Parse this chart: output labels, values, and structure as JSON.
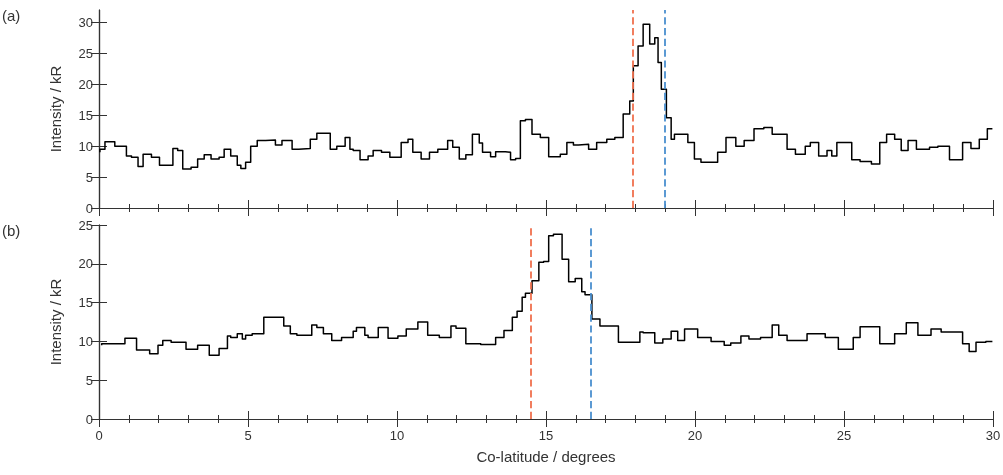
{
  "chart_data": [
    {
      "type": "step",
      "annotations": [
        "(a)"
      ],
      "ylabel": "Intensity / kR",
      "xlim": [
        0,
        30
      ],
      "xticks": [
        0,
        5,
        10,
        15,
        20,
        25,
        30
      ],
      "ylim": [
        0,
        32
      ],
      "yticks": [
        0,
        5,
        10,
        15,
        20,
        25,
        30
      ],
      "tick_labels": "y",
      "grid": false,
      "series": [
        {
          "color": "#000000",
          "x": [
            0.03,
            0.2,
            0.53,
            0.92,
            1.09,
            1.31,
            1.48,
            1.76,
            2.03,
            2.26,
            2.48,
            2.64,
            2.81,
            3.09,
            3.31,
            3.53,
            3.76,
            4.03,
            4.2,
            4.42,
            4.64,
            4.76,
            4.92,
            5.09,
            5.31,
            5.59,
            5.92,
            6.14,
            6.48,
            6.7,
            7.09,
            7.31,
            7.53,
            7.76,
            7.98,
            8.26,
            8.42,
            8.53,
            8.76,
            9.03,
            9.2,
            9.48,
            9.76,
            9.92,
            10.14,
            10.37,
            10.53,
            10.81,
            11.09,
            11.37,
            11.7,
            11.87,
            12.09,
            12.31,
            12.53,
            12.76,
            12.87,
            13.14,
            13.31,
            13.64,
            13.81,
            13.98,
            14.14,
            14.31,
            14.53,
            14.81,
            15.09,
            15.48,
            15.7,
            15.92,
            16.09,
            16.43,
            16.7,
            17.04,
            17.31,
            17.59,
            17.81,
            17.93,
            18.09,
            18.26,
            18.37,
            18.48,
            18.65,
            18.76,
            18.87,
            19.04,
            19.2,
            19.31,
            19.54,
            19.76,
            19.98,
            20.2,
            20.54,
            20.76,
            21.04,
            21.37,
            21.65,
            21.98,
            22.31,
            22.59,
            23.09,
            23.37,
            23.7,
            23.87,
            24.15,
            24.43,
            24.59,
            24.76,
            24.98,
            25.26,
            25.54,
            25.92,
            26.2,
            26.43,
            26.7,
            26.92,
            27.15,
            27.43,
            27.87,
            28.15,
            28.54,
            28.98,
            29.26,
            29.54,
            29.81,
            29.98
          ],
          "values": [
            9,
            9.5,
            10.7,
            10,
            8.4,
            8.2,
            6.7,
            8.7,
            8.2,
            6.9,
            6.9,
            9.6,
            9.3,
            6.3,
            6.6,
            7.9,
            8.6,
            7.9,
            8.2,
            9.5,
            8.4,
            6.9,
            6.4,
            7.4,
            10,
            10.9,
            11,
            10.2,
            10.9,
            9.5,
            9.6,
            11.1,
            12.1,
            12.1,
            9.5,
            10,
            11.4,
            9.5,
            9.3,
            7.8,
            8.4,
            9.3,
            9,
            8.2,
            8.2,
            10.6,
            11.1,
            9,
            7.9,
            9,
            9.5,
            10.9,
            9.8,
            7.9,
            8.6,
            11.9,
            10.5,
            9,
            8.3,
            9.1,
            9,
            7.8,
            8,
            14.1,
            14.3,
            11.9,
            11.4,
            8.3,
            8.7,
            10.6,
            10.2,
            10.3,
            9.5,
            10.6,
            11.1,
            11.4,
            15.2,
            17.3,
            23,
            26.2,
            29.7,
            29.7,
            26.5,
            27.5,
            23.5,
            19.2,
            14.6,
            11.1,
            11.9,
            11.9,
            10.6,
            7.9,
            7.4,
            7.4,
            9,
            11.4,
            10,
            10.9,
            12.8,
            13,
            11.9,
            9.5,
            8.7,
            10,
            10.6,
            8.4,
            9.3,
            8.4,
            10.6,
            10.6,
            7.8,
            7.5,
            7.1,
            10.6,
            11.9,
            11.1,
            9.3,
            10.9,
            9.5,
            9.8,
            10,
            7.8,
            10.6,
            9.6,
            11.1,
            12.8
          ]
        }
      ],
      "ref_lines": [
        {
          "axis": "x",
          "value": 17.9,
          "color": "#f0704e",
          "line_style": "dashed"
        },
        {
          "axis": "x",
          "value": 19.0,
          "color": "#4a8fcf",
          "line_style": "dashed"
        }
      ]
    },
    {
      "type": "step",
      "annotations": [
        "(b)"
      ],
      "xlabel": "Co-latitude / degrees",
      "ylabel": "Intensity / kR",
      "xlim": [
        0,
        30
      ],
      "xticks": [
        0,
        5,
        10,
        15,
        20,
        25,
        30
      ],
      "ylim": [
        0,
        25
      ],
      "yticks": [
        0,
        5,
        10,
        15,
        20,
        25
      ],
      "grid": false,
      "series": [
        {
          "color": "#000000",
          "x": [
            0.09,
            0.53,
            0.87,
            1.26,
            1.7,
            1.98,
            2.14,
            2.42,
            2.92,
            3.31,
            3.7,
            4.03,
            4.31,
            4.42,
            4.64,
            4.81,
            4.92,
            5.14,
            5.53,
            5.92,
            6.2,
            6.42,
            6.64,
            7.14,
            7.31,
            7.53,
            7.81,
            8.14,
            8.53,
            8.64,
            8.92,
            9.03,
            9.37,
            9.7,
            10.03,
            10.31,
            10.7,
            11.03,
            11.42,
            11.81,
            11.98,
            12.31,
            12.81,
            13.31,
            13.59,
            13.87,
            14.03,
            14.2,
            14.31,
            14.53,
            14.76,
            14.92,
            15.09,
            15.25,
            15.54,
            15.76,
            15.98,
            16.2,
            16.31,
            16.54,
            16.81,
            17.43,
            17.81,
            18.15,
            18.26,
            18.65,
            18.92,
            19.2,
            19.42,
            19.65,
            20.09,
            20.54,
            20.98,
            21.2,
            21.54,
            21.81,
            22.2,
            22.59,
            22.81,
            23.09,
            23.76,
            24.37,
            24.81,
            25.31,
            25.54,
            26.2,
            26.7,
            27.09,
            27.48,
            27.92,
            28.26,
            28.98,
            29.2,
            29.43,
            29.76,
            29.98
          ],
          "values": [
            9.5,
            9.7,
            9.7,
            10.4,
            8.9,
            8.4,
            9.5,
            10.1,
            9.9,
            9,
            9.5,
            8.2,
            9.1,
            10.7,
            10.5,
            11,
            10.3,
            10.8,
            11,
            13.1,
            13.1,
            12,
            11,
            10.8,
            12.1,
            11.8,
            11,
            10.1,
            10.5,
            11.3,
            11.8,
            10.8,
            10.5,
            11.8,
            10.4,
            10.7,
            11.6,
            12.5,
            10.8,
            10.5,
            12,
            11.7,
            9.7,
            9.6,
            10.5,
            11.4,
            13.1,
            13.9,
            15.7,
            16.2,
            17.8,
            20.2,
            20.3,
            23.6,
            23.8,
            20.6,
            17.7,
            18.1,
            16.4,
            16,
            12.9,
            12,
            9.9,
            9.9,
            11.2,
            11.1,
            9.8,
            10.3,
            11.3,
            10.1,
            11.6,
            10.5,
            10,
            9.5,
            9.8,
            10.7,
            10.3,
            10.5,
            12.1,
            10.8,
            10.1,
            11,
            10.5,
            9,
            10.5,
            11.9,
            9.7,
            11,
            12.4,
            10.8,
            11.6,
            11.2,
            9.7,
            8.7,
            9.9,
            10
          ]
        }
      ],
      "ref_lines": [
        {
          "axis": "x",
          "value": 14.5,
          "color": "#f0704e",
          "line_style": "dashed"
        },
        {
          "axis": "x",
          "value": 16.5,
          "color": "#4a8fcf",
          "line_style": "dashed"
        }
      ]
    }
  ]
}
